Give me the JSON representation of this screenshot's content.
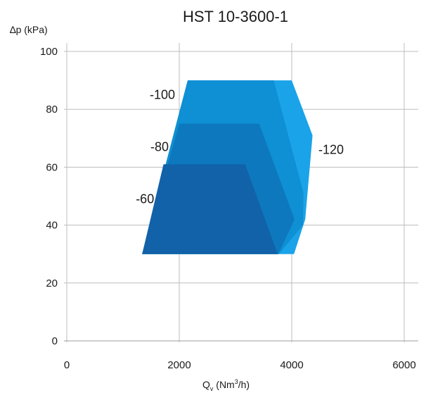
{
  "chart_data": {
    "type": "area",
    "title": "HST 10-3600-1",
    "ylabel": "∆p (kPa)",
    "xlabel": "Q",
    "xlabel_sub": "v",
    "xlabel_unit_prefix": " (Nm",
    "xlabel_unit_sup": "3",
    "xlabel_unit_suffix": "/h)",
    "xlim": [
      0,
      6000
    ],
    "ylim": [
      0,
      100
    ],
    "x_ticks": [
      0,
      2000,
      4000,
      6000
    ],
    "y_ticks": [
      0,
      20,
      40,
      60,
      80,
      100
    ],
    "grid": true,
    "series": [
      {
        "name": "-120",
        "color": "#1aa3e8",
        "points": [
          [
            2150,
            90
          ],
          [
            4000,
            90
          ],
          [
            4370,
            71
          ],
          [
            4240,
            42
          ],
          [
            4040,
            30
          ],
          [
            1340,
            30
          ]
        ]
      },
      {
        "name": "-100",
        "color": "#0f8fd4",
        "points": [
          [
            2150,
            90
          ],
          [
            3680,
            90
          ],
          [
            4210,
            51
          ],
          [
            4200,
            40
          ],
          [
            3770,
            30
          ],
          [
            1340,
            30
          ]
        ]
      },
      {
        "name": "-80",
        "color": "#0d78bd",
        "points": [
          [
            2000,
            75
          ],
          [
            3420,
            75
          ],
          [
            4050,
            42
          ],
          [
            3760,
            30
          ],
          [
            1340,
            30
          ]
        ]
      },
      {
        "name": "-60",
        "color": "#1162a8",
        "points": [
          [
            1720,
            61
          ],
          [
            3170,
            61
          ],
          [
            3750,
            30
          ],
          [
            1340,
            30
          ]
        ]
      }
    ],
    "series_labels": [
      {
        "text": "-100",
        "x": 1700,
        "y": 85
      },
      {
        "text": "-80",
        "x": 1650,
        "y": 67
      },
      {
        "text": "-60",
        "x": 1390,
        "y": 49
      },
      {
        "text": "-120",
        "x": 4700,
        "y": 66
      }
    ]
  }
}
